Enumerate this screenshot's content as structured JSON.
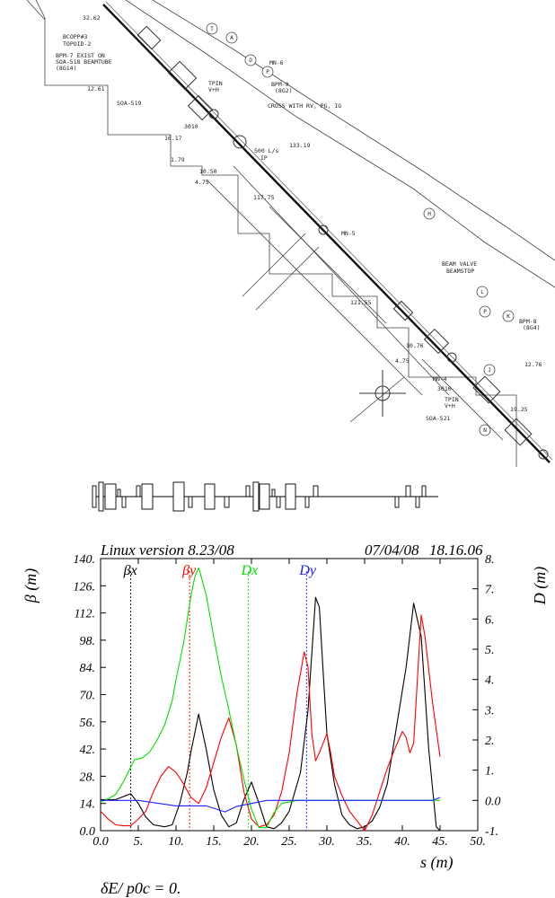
{
  "drawing": {
    "dimensions": [
      "32.62",
      "12.61",
      "16.17",
      "1.79",
      "10.50",
      "4.75",
      "117.75",
      "133.19",
      "121.55",
      "10.76",
      "4.75",
      "12.76",
      "19.25"
    ],
    "labels": [
      "BCOPP#3",
      "TOPOID-2",
      "BPM-7 EXIST ON",
      "SOA-518 BEAMTUBE",
      "(8G14)",
      "SOA-519",
      "3010",
      "TPIN",
      "V+H",
      "MN-6",
      "BPM-9",
      "(8G2)",
      "CROSS WITH RV, PG, IG",
      "500 L/s",
      "IP",
      "MN-5",
      "BEAM VALVE",
      "BEAMSTOP",
      "BPM-8",
      "(8G4)",
      "MN-4",
      "3010",
      "TPIN",
      "V+H",
      "SOA-521"
    ],
    "balloons": [
      "T",
      "A",
      "O",
      "P",
      "H",
      "L",
      "P",
      "K",
      "J",
      "N"
    ]
  },
  "plot": {
    "header_left": "Linux version 8.23/08",
    "header_date": "07/04/08",
    "header_time": "18.16.06",
    "footer": "δE/ p0c  =  0.",
    "y_axis_label_left": "β  (m)",
    "y_axis_label_right": "D (m)",
    "x_axis_label": "s (m)"
  },
  "chart_data": {
    "type": "line",
    "xlabel": "s (m)",
    "ylabel": "β  (m)",
    "y2label": "D (m)",
    "xlim": [
      0,
      50
    ],
    "ylim": [
      0,
      140
    ],
    "y2lim": [
      -1,
      8
    ],
    "x_ticks": [
      "0.0",
      "5.",
      "10.",
      "15.",
      "20.",
      "25.",
      "30.",
      "35.",
      "40.",
      "45.",
      "50."
    ],
    "y_ticks": [
      "0.0",
      "14.",
      "28.",
      "42.",
      "56.",
      "70.",
      "84.",
      "98.",
      "112.",
      "126.",
      "140."
    ],
    "y2_ticks": [
      "-1.",
      "0.0",
      "1.",
      "2.",
      "3.",
      "4.",
      "5.",
      "6.",
      "7.",
      "8."
    ],
    "grid": false,
    "legend_placement": "top",
    "series": [
      {
        "name": "βx",
        "axis": "left",
        "color": "#000000",
        "legend_x": 4,
        "points": [
          [
            0,
            16
          ],
          [
            2,
            16
          ],
          [
            4,
            19
          ],
          [
            5,
            14
          ],
          [
            6,
            7
          ],
          [
            7,
            3
          ],
          [
            8.5,
            2
          ],
          [
            9.5,
            3
          ],
          [
            10.5,
            14
          ],
          [
            11.5,
            30
          ],
          [
            12,
            41
          ],
          [
            13,
            60
          ],
          [
            14,
            42
          ],
          [
            15,
            21
          ],
          [
            16,
            8
          ],
          [
            17,
            2
          ],
          [
            18,
            4
          ],
          [
            19,
            16
          ],
          [
            20,
            25
          ],
          [
            21,
            14
          ],
          [
            22,
            2
          ],
          [
            23,
            1
          ],
          [
            24,
            4
          ],
          [
            25,
            10
          ],
          [
            26.5,
            30
          ],
          [
            27.5,
            62
          ],
          [
            28.5,
            120
          ],
          [
            29,
            115
          ],
          [
            29.5,
            82
          ],
          [
            30,
            50
          ],
          [
            31,
            24
          ],
          [
            32,
            8
          ],
          [
            33,
            3
          ],
          [
            34,
            1
          ],
          [
            35,
            2
          ],
          [
            36,
            5
          ],
          [
            37,
            12
          ],
          [
            38,
            24
          ],
          [
            39,
            48
          ],
          [
            40.5,
            84
          ],
          [
            41.5,
            117
          ],
          [
            42.5,
            100
          ],
          [
            43.5,
            42
          ],
          [
            44.5,
            2
          ],
          [
            45,
            0
          ]
        ]
      },
      {
        "name": "βy",
        "axis": "left",
        "color": "#ff0000",
        "legend_x": 11.8,
        "points": [
          [
            0,
            10
          ],
          [
            1,
            6
          ],
          [
            2,
            3
          ],
          [
            3,
            2.5
          ],
          [
            4,
            2.5
          ],
          [
            5,
            6
          ],
          [
            6,
            10
          ],
          [
            7,
            20
          ],
          [
            8,
            28
          ],
          [
            9,
            33
          ],
          [
            10,
            30
          ],
          [
            11,
            24
          ],
          [
            12,
            17
          ],
          [
            13,
            14
          ],
          [
            14,
            22
          ],
          [
            15,
            35
          ],
          [
            16,
            48
          ],
          [
            17,
            58
          ],
          [
            18,
            44
          ],
          [
            19,
            20
          ],
          [
            20,
            6
          ],
          [
            21,
            2
          ],
          [
            22,
            3
          ],
          [
            23,
            8
          ],
          [
            24,
            20
          ],
          [
            25,
            40
          ],
          [
            26,
            70
          ],
          [
            27,
            92
          ],
          [
            27.5,
            84
          ],
          [
            28,
            50
          ],
          [
            28.5,
            36
          ],
          [
            29,
            40
          ],
          [
            30,
            50
          ],
          [
            30.5,
            40
          ],
          [
            31,
            28
          ],
          [
            32,
            18
          ],
          [
            33,
            10
          ],
          [
            34,
            5
          ],
          [
            35,
            0
          ],
          [
            36,
            8
          ],
          [
            37,
            20
          ],
          [
            38,
            32
          ],
          [
            39,
            42
          ],
          [
            40,
            51
          ],
          [
            40.5,
            48
          ],
          [
            41,
            40
          ],
          [
            41.5,
            45
          ],
          [
            42.5,
            111
          ],
          [
            43,
            100
          ],
          [
            44,
            66
          ],
          [
            45,
            38
          ]
        ]
      },
      {
        "name": "Dx",
        "axis": "right",
        "color": "#00e000",
        "legend_x": 19.6,
        "points": [
          [
            0,
            -0.05
          ],
          [
            1,
            0.05
          ],
          [
            2,
            0.2
          ],
          [
            3,
            0.6
          ],
          [
            4,
            1.1
          ],
          [
            4.5,
            1.35
          ],
          [
            5.5,
            1.4
          ],
          [
            6.5,
            1.6
          ],
          [
            7.5,
            2.0
          ],
          [
            8.5,
            2.5
          ],
          [
            9.5,
            3.3
          ],
          [
            10,
            4.0
          ],
          [
            11,
            5.2
          ],
          [
            12,
            6.8
          ],
          [
            12.5,
            7.4
          ],
          [
            13,
            7.7
          ],
          [
            14,
            6.8
          ],
          [
            15,
            5.4
          ],
          [
            16,
            4.1
          ],
          [
            17,
            3.0
          ],
          [
            18,
            1.8
          ],
          [
            19,
            0.7
          ],
          [
            20,
            -0.3
          ],
          [
            21,
            -0.9
          ],
          [
            22,
            -0.9
          ],
          [
            23,
            -0.4
          ],
          [
            24,
            -0.1
          ],
          [
            26,
            0
          ],
          [
            30,
            0
          ],
          [
            35,
            0
          ],
          [
            40,
            0
          ],
          [
            45,
            0
          ]
        ]
      },
      {
        "name": "Dy",
        "axis": "right",
        "color": "#2020ff",
        "legend_x": 27.3,
        "points": [
          [
            0,
            0
          ],
          [
            5,
            0
          ],
          [
            10,
            -0.18
          ],
          [
            14,
            -0.18
          ],
          [
            16.5,
            -0.38
          ],
          [
            18,
            -0.2
          ],
          [
            20,
            -0.1
          ],
          [
            22,
            0
          ],
          [
            25,
            0
          ],
          [
            30,
            0
          ],
          [
            35,
            0
          ],
          [
            40,
            0
          ],
          [
            44,
            0
          ],
          [
            45,
            0.1
          ]
        ]
      }
    ]
  }
}
